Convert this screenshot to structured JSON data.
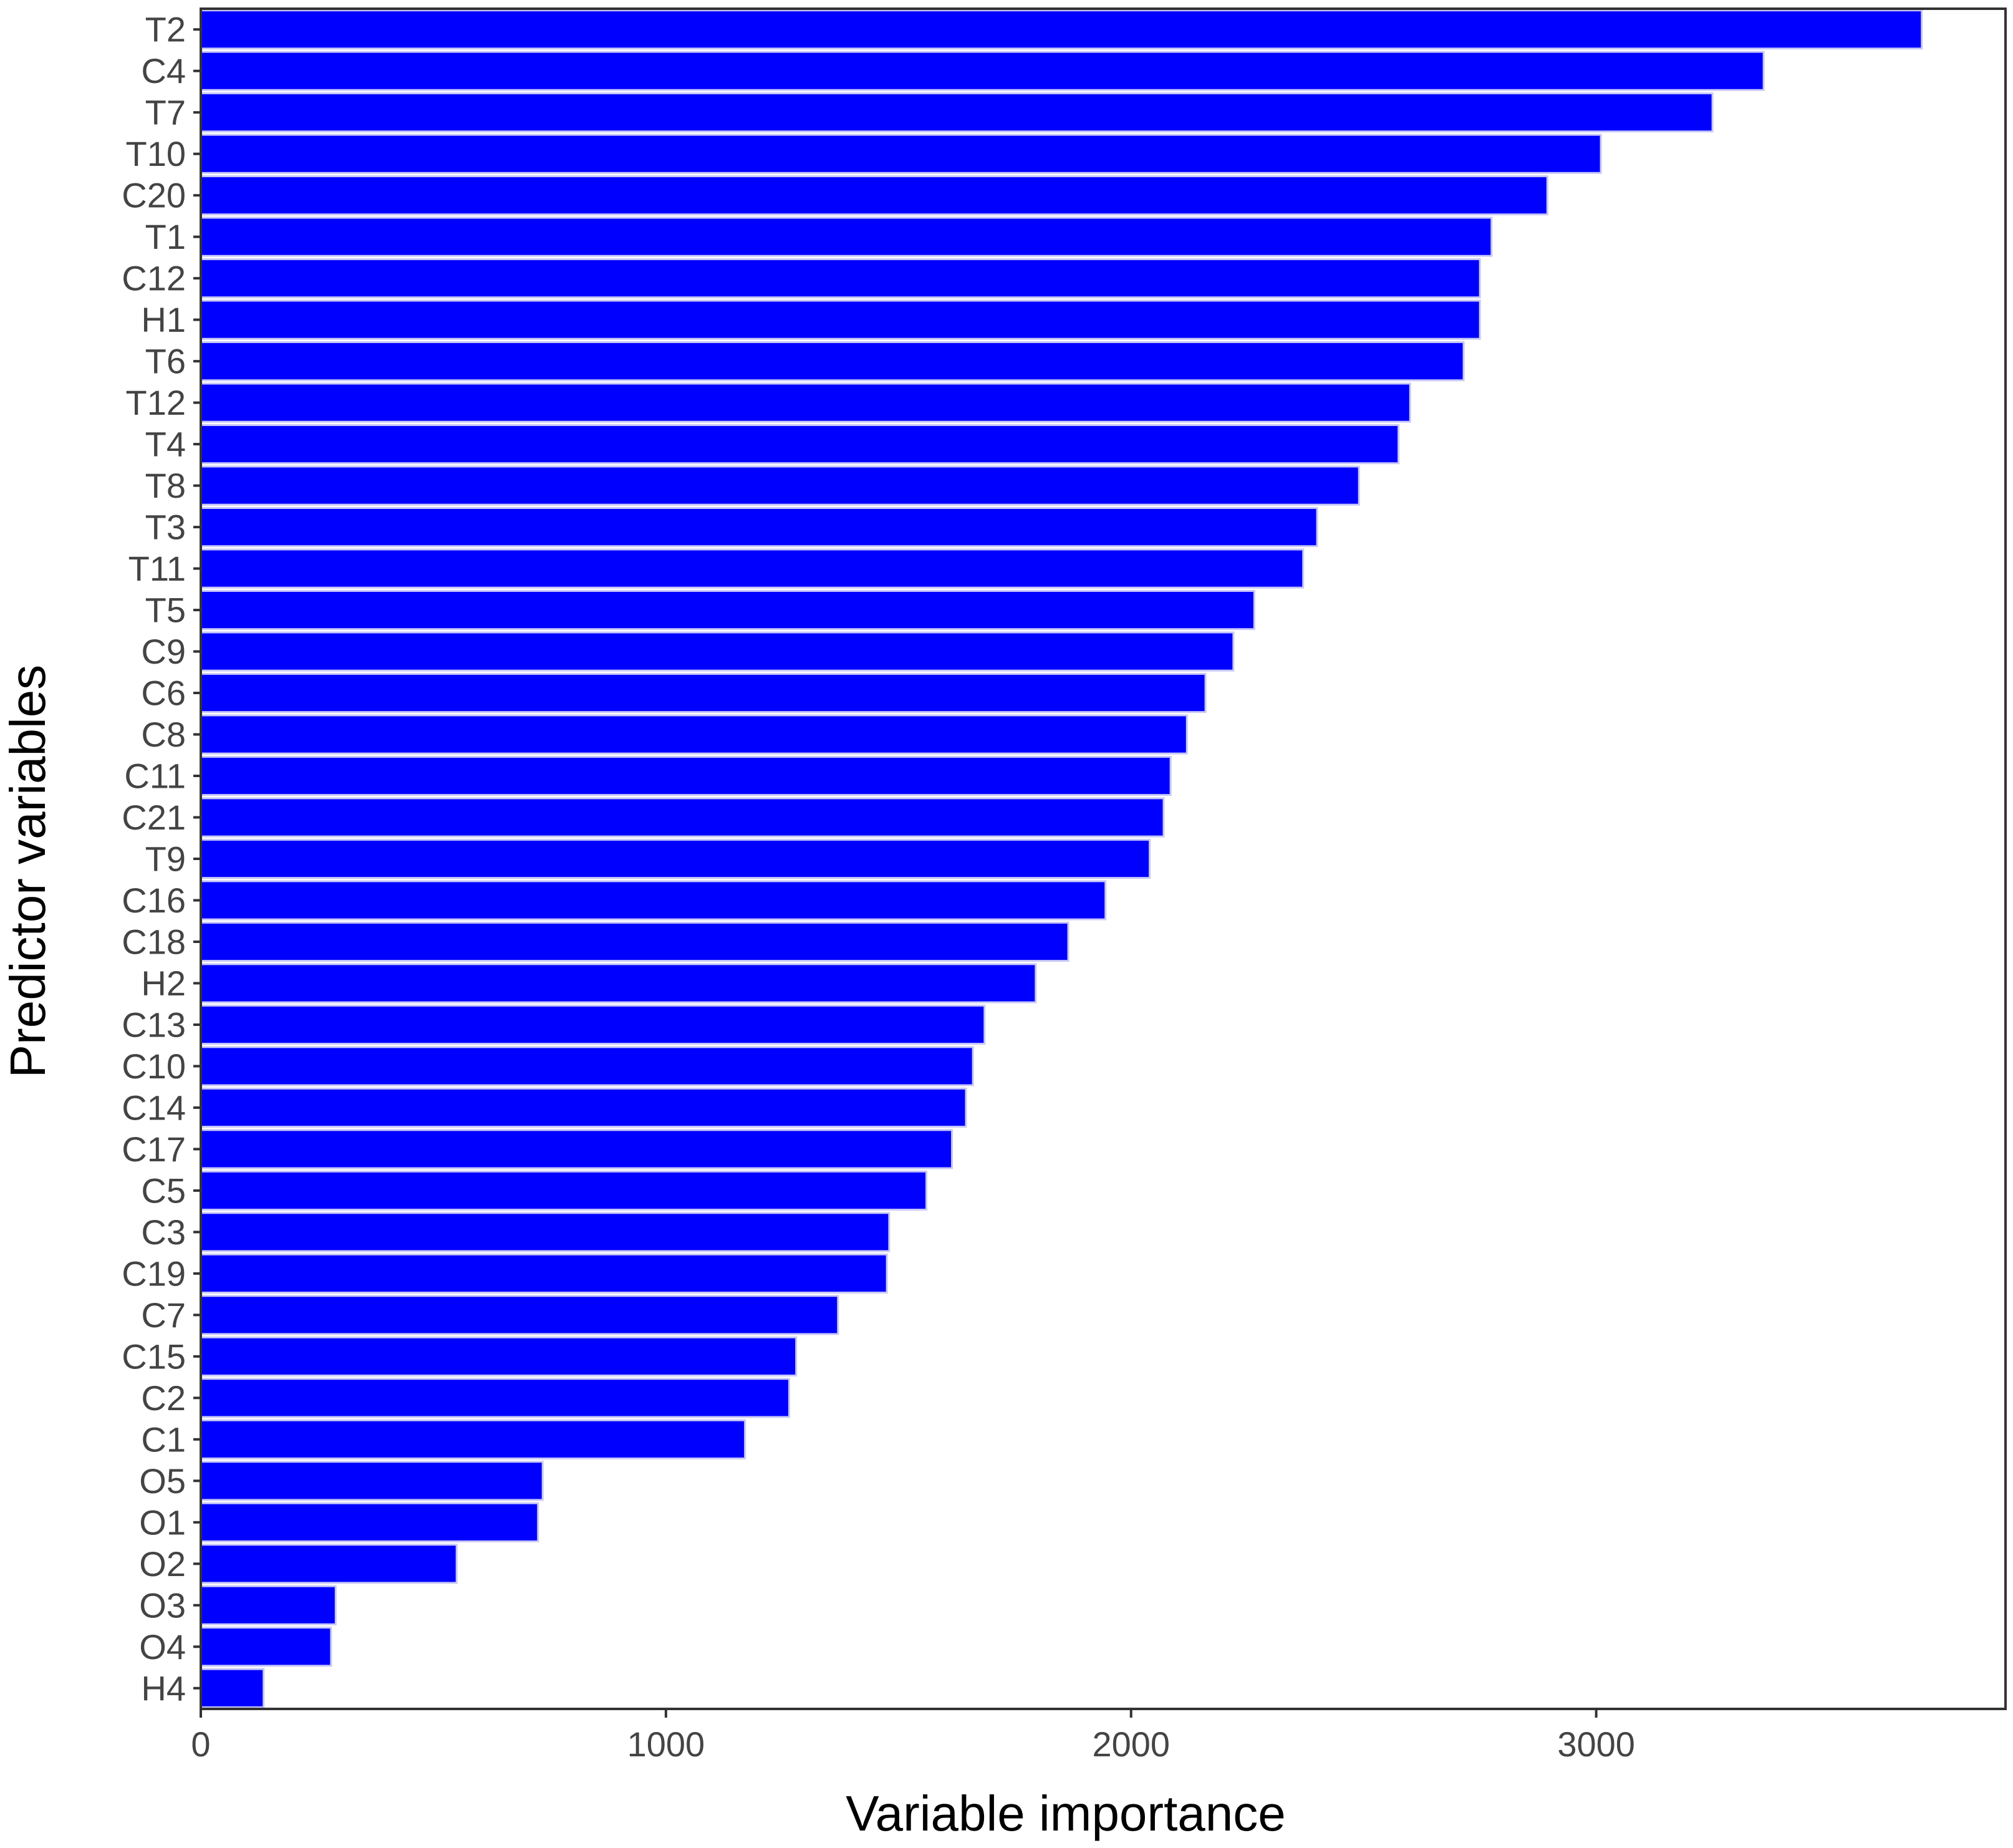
{
  "chart_data": {
    "type": "bar",
    "orientation": "horizontal",
    "xlabel": "Variable importance",
    "ylabel": "Predictor variables",
    "xlim": [
      0,
      3880
    ],
    "xticks": [
      0,
      1000,
      2000,
      3000
    ],
    "xtick_labels": [
      "0",
      "1000",
      "2000",
      "3000"
    ],
    "bar_color": "#0000ff",
    "grid": false,
    "categories": [
      "T2",
      "C4",
      "T7",
      "T10",
      "C20",
      "T1",
      "C12",
      "H1",
      "T6",
      "T12",
      "T4",
      "T8",
      "T3",
      "T11",
      "T5",
      "C9",
      "C6",
      "C8",
      "C11",
      "C21",
      "T9",
      "C16",
      "C18",
      "H2",
      "C13",
      "C10",
      "C14",
      "C17",
      "C5",
      "C3",
      "C19",
      "C7",
      "C15",
      "C2",
      "C1",
      "O5",
      "O1",
      "O2",
      "O3",
      "O4",
      "H4"
    ],
    "values": [
      3700,
      3360,
      3250,
      3010,
      2895,
      2775,
      2750,
      2750,
      2715,
      2600,
      2575,
      2490,
      2400,
      2370,
      2265,
      2220,
      2160,
      2120,
      2085,
      2070,
      2040,
      1945,
      1865,
      1795,
      1685,
      1660,
      1645,
      1615,
      1560,
      1480,
      1475,
      1370,
      1280,
      1265,
      1170,
      735,
      725,
      550,
      290,
      280,
      135
    ]
  }
}
